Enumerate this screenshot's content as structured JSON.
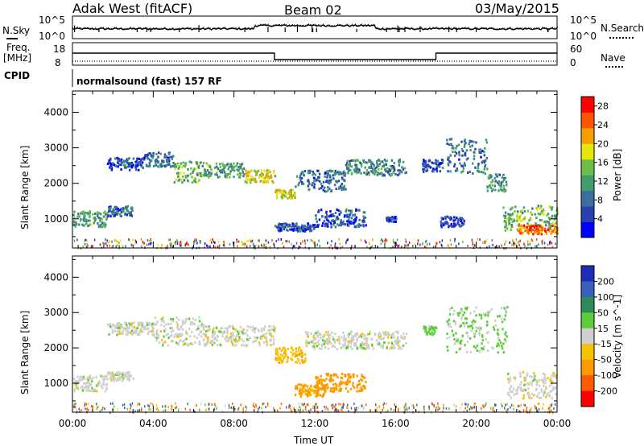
{
  "header": {
    "station": "Adak West (fitACF)",
    "beam": "Beam 02",
    "date": "03/May/2015"
  },
  "top_panels": {
    "nsky_label": "N.Sky",
    "nsearch_label": "N.Search",
    "nsky_ticks": [
      "10^5",
      "10^0"
    ],
    "nsearch_ticks": [
      "10^5",
      "10^0"
    ],
    "freq_label_1": "Freq.",
    "freq_label_2": "[MHz]",
    "freq_ticks": [
      "18",
      "8"
    ],
    "nave_label": "Nave",
    "nave_ticks": [
      "60",
      "0"
    ],
    "cpid_label": "CPID",
    "cpid_text": "normalsound (fast) 157 RF"
  },
  "colors": {
    "power_scale": [
      "#0000ff",
      "#2a3fb0",
      "#3d6e9e",
      "#3f9e6a",
      "#6cc04a",
      "#e6e60a",
      "#f5a000",
      "#ff5500",
      "#ff0000"
    ],
    "velocity_scale": [
      "#1f2cb8",
      "#3a5fbf",
      "#2e8b57",
      "#5bcc3a",
      "#cfcfcf",
      "#f5c400",
      "#ff9900",
      "#ff5a00",
      "#ff0000"
    ],
    "ground_gray": "#c8c8c8"
  },
  "chart_data": [
    {
      "type": "heatmap",
      "title": "",
      "ylabel": "Slant Range [km]",
      "xlabel": "",
      "x_ticks": [
        "00:00",
        "04:00",
        "08:00",
        "12:00",
        "16:00",
        "20:00",
        "00:00"
      ],
      "y_ticks": [
        "1000",
        "2000",
        "3000",
        "4000"
      ],
      "xlim_hours": [
        0,
        24
      ],
      "ylim_km": [
        180,
        4600
      ],
      "colorbar": {
        "label": "Power [dB]",
        "ticks": [
          "4",
          "8",
          "12",
          "16",
          "20",
          "24",
          "28"
        ],
        "range": [
          0,
          30
        ]
      },
      "echo_regions": [
        {
          "t_start": 0.0,
          "t_end": 1.7,
          "r_low": 800,
          "r_high": 1250,
          "power": 12
        },
        {
          "t_start": 1.7,
          "t_end": 3.0,
          "r_low": 1100,
          "r_high": 1400,
          "power": 8
        },
        {
          "t_start": 1.7,
          "t_end": 3.5,
          "r_low": 2400,
          "r_high": 2750,
          "power": 6
        },
        {
          "t_start": 3.5,
          "t_end": 5.0,
          "r_low": 2500,
          "r_high": 2900,
          "power": 8
        },
        {
          "t_start": 5.0,
          "t_end": 6.5,
          "r_low": 2050,
          "r_high": 2650,
          "power": 14
        },
        {
          "t_start": 6.5,
          "t_end": 8.5,
          "r_low": 2200,
          "r_high": 2600,
          "power": 12
        },
        {
          "t_start": 8.5,
          "t_end": 10.0,
          "r_low": 2050,
          "r_high": 2400,
          "power": 18
        },
        {
          "t_start": 10.0,
          "t_end": 11.0,
          "r_low": 1600,
          "r_high": 1850,
          "power": 18
        },
        {
          "t_start": 11.0,
          "t_end": 13.5,
          "r_low": 1800,
          "r_high": 2400,
          "power": 8
        },
        {
          "t_start": 13.5,
          "t_end": 16.5,
          "r_low": 2250,
          "r_high": 2700,
          "power": 10
        },
        {
          "t_start": 10.0,
          "t_end": 12.0,
          "r_low": 680,
          "r_high": 900,
          "power": 6
        },
        {
          "t_start": 12.0,
          "t_end": 14.5,
          "r_low": 800,
          "r_high": 1300,
          "power": 6
        },
        {
          "t_start": 15.5,
          "t_end": 16.0,
          "r_low": 950,
          "r_high": 1100,
          "power": 4
        },
        {
          "t_start": 17.3,
          "t_end": 18.3,
          "r_low": 2350,
          "r_high": 2700,
          "power": 6
        },
        {
          "t_start": 18.2,
          "t_end": 19.4,
          "r_low": 800,
          "r_high": 1100,
          "power": 6
        },
        {
          "t_start": 18.5,
          "t_end": 20.5,
          "r_low": 2300,
          "r_high": 3300,
          "power": 8
        },
        {
          "t_start": 20.5,
          "t_end": 21.5,
          "r_low": 1800,
          "r_high": 2300,
          "power": 10
        },
        {
          "t_start": 21.3,
          "t_end": 24.0,
          "r_low": 700,
          "r_high": 1400,
          "power": 14
        },
        {
          "t_start": 22.0,
          "t_end": 24.0,
          "r_low": 600,
          "r_high": 850,
          "power": 24
        }
      ]
    },
    {
      "type": "heatmap",
      "title": "",
      "ylabel": "Slant Range [km]",
      "xlabel": "Time UT",
      "x_ticks": [
        "00:00",
        "04:00",
        "08:00",
        "12:00",
        "16:00",
        "20:00",
        "00:00"
      ],
      "y_ticks": [
        "1000",
        "2000",
        "3000",
        "4000"
      ],
      "xlim_hours": [
        0,
        24
      ],
      "ylim_km": [
        180,
        4600
      ],
      "colorbar": {
        "label": "Velocity [m s^-1]",
        "ticks": [
          "200",
          "100",
          "50",
          "15",
          "-15",
          "-50",
          "-100",
          "-200"
        ],
        "range": [
          -250,
          250
        ]
      },
      "echo_regions": [
        {
          "t_start": 0.0,
          "t_end": 1.7,
          "r_low": 800,
          "r_high": 1250,
          "velocity": 0
        },
        {
          "t_start": 1.7,
          "t_end": 3.0,
          "r_low": 1100,
          "r_high": 1350,
          "velocity": 0
        },
        {
          "t_start": 1.7,
          "t_end": 4.0,
          "r_low": 2400,
          "r_high": 2750,
          "velocity": 0
        },
        {
          "t_start": 4.0,
          "t_end": 6.5,
          "r_low": 2100,
          "r_high": 2900,
          "velocity": 0
        },
        {
          "t_start": 6.5,
          "t_end": 10.0,
          "r_low": 2100,
          "r_high": 2650,
          "velocity": 0
        },
        {
          "t_start": 10.0,
          "t_end": 11.5,
          "r_low": 1600,
          "r_high": 2050,
          "velocity": -40
        },
        {
          "t_start": 11.5,
          "t_end": 16.5,
          "r_low": 2000,
          "r_high": 2500,
          "velocity": 0
        },
        {
          "t_start": 11.0,
          "t_end": 12.5,
          "r_low": 650,
          "r_high": 1000,
          "velocity": -60
        },
        {
          "t_start": 12.0,
          "t_end": 14.5,
          "r_low": 800,
          "r_high": 1300,
          "velocity": -70
        },
        {
          "t_start": 17.3,
          "t_end": 18.0,
          "r_low": 2400,
          "r_high": 2650,
          "velocity": 30
        },
        {
          "t_start": 18.5,
          "t_end": 21.5,
          "r_low": 1900,
          "r_high": 3200,
          "velocity": 20
        },
        {
          "t_start": 21.5,
          "t_end": 24.0,
          "r_low": 600,
          "r_high": 1350,
          "velocity": 0
        }
      ]
    }
  ]
}
